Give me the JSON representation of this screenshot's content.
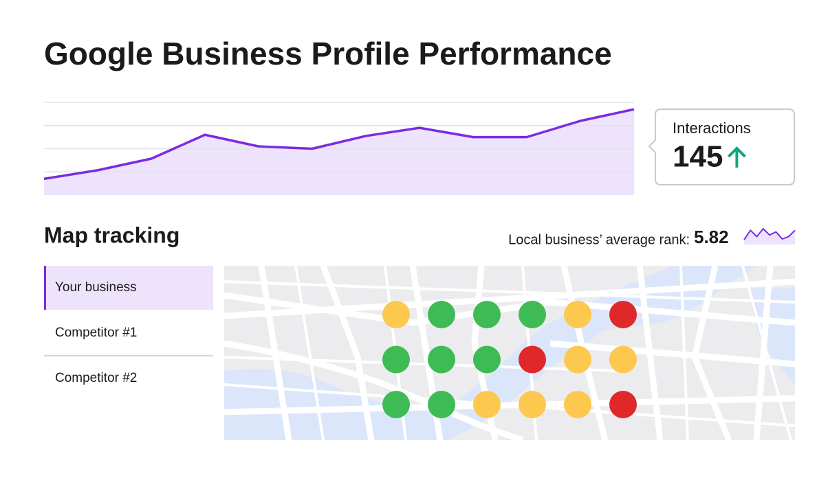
{
  "header": {
    "title": "Google Business Profile Performance"
  },
  "chart_data": [
    {
      "type": "line",
      "categories": [
        null,
        null,
        null,
        null,
        null,
        null,
        null,
        null,
        null,
        null,
        null,
        null
      ],
      "values": [
        0.7,
        1.07,
        1.57,
        2.6,
        2.1,
        2.0,
        2.55,
        2.9,
        2.5,
        2.5,
        3.2,
        3.7
      ],
      "ylim": [
        0,
        4
      ],
      "yticks": [
        1,
        2,
        3,
        4
      ],
      "grid": true,
      "color": "#7b2be0",
      "fill": "#ede3fc"
    },
    {
      "type": "line",
      "values": [
        0.3,
        0.9,
        0.5,
        1,
        0.6,
        0.8,
        0.35,
        0.5,
        0.9
      ],
      "ylim": [
        0,
        1
      ],
      "color": "#7b2be0",
      "fill": "#ede3fc"
    }
  ],
  "interactions_card": {
    "label": "Interactions",
    "value": 145
  },
  "map_tracking": {
    "title": "Map tracking",
    "rank_label": "Local business’ average rank:",
    "rank_value": 5.82,
    "tabs": [
      "Your business",
      "Competitor #1",
      "Competitor #2"
    ],
    "active_tab": 0,
    "dots": [
      [
        "#fdc84e",
        "#3fbb55",
        "#3fbb55",
        "#3fbb55",
        "#fdc84e",
        "#e0282a"
      ],
      [
        "#3fbb55",
        "#3fbb55",
        "#3fbb55",
        "#e0282a",
        "#fdc84e",
        "#fdc84e"
      ],
      [
        "#3fbb55",
        "#3fbb55",
        "#fdc84e",
        "#fdc84e",
        "#fdc84e",
        "#e0282a"
      ]
    ]
  }
}
